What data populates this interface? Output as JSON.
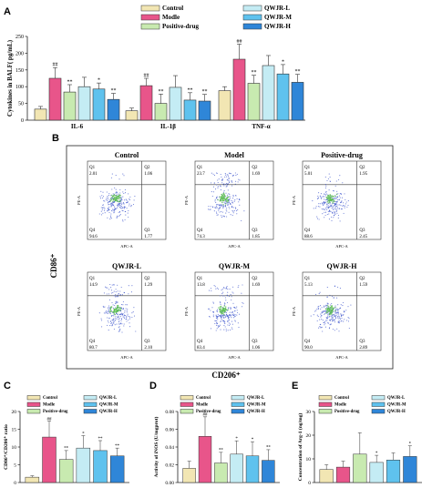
{
  "colors": {
    "Control": "#f2e6b3",
    "Modle": "#e8558a",
    "Positive-drug": "#c8eab0",
    "QWJR-L": "#c4ecf4",
    "QWJR-M": "#5fc2ee",
    "QWJR-H": "#2f86d8",
    "scatter": "#2f48c8",
    "scatter_dense": "#5fbf54"
  },
  "legend_labels": [
    "Control",
    "Modle",
    "Positive-drug",
    "QWJR-L",
    "QWJR-M",
    "QWJR-H"
  ],
  "panels": {
    "A": {
      "letter": "A"
    },
    "B": {
      "letter": "B",
      "ylabel": "CD86⁺",
      "xlabel": "CD206⁺"
    },
    "C": {
      "letter": "C"
    },
    "D": {
      "letter": "D"
    },
    "E": {
      "letter": "E"
    }
  },
  "chart_data": [
    {
      "id": "A",
      "type": "bar",
      "ylabel": "Cytokines in BALF( pg/mL)",
      "ylim": [
        0,
        250
      ],
      "yticks": [
        0,
        50,
        100,
        150,
        200,
        250
      ],
      "categories": [
        "IL-6",
        "IL-1β",
        "TNF-α"
      ],
      "legend": "top",
      "grid": false,
      "series": [
        {
          "name": "Control",
          "values": [
            33,
            28,
            88
          ],
          "errors": [
            8,
            8,
            12
          ],
          "annotations": [
            "",
            "",
            ""
          ]
        },
        {
          "name": "Modle",
          "values": [
            125,
            103,
            182
          ],
          "errors": [
            32,
            22,
            45
          ],
          "annotations": [
            "##",
            "##",
            "##"
          ]
        },
        {
          "name": "Positive-drug",
          "values": [
            84,
            50,
            110
          ],
          "errors": [
            22,
            28,
            24
          ],
          "annotations": [
            "**",
            "**",
            "**"
          ]
        },
        {
          "name": "QWJR-L",
          "values": [
            100,
            98,
            163
          ],
          "errors": [
            28,
            35,
            30
          ],
          "annotations": [
            "",
            "",
            ""
          ]
        },
        {
          "name": "QWJR-M",
          "values": [
            93,
            60,
            138
          ],
          "errors": [
            18,
            22,
            28
          ],
          "annotations": [
            "*",
            "**",
            "*"
          ]
        },
        {
          "name": "QWJR-H",
          "values": [
            62,
            57,
            113
          ],
          "errors": [
            18,
            20,
            24
          ],
          "annotations": [
            "**",
            "**",
            "**"
          ]
        }
      ]
    },
    {
      "id": "B",
      "type": "scatter",
      "xlabel": "CD206⁺",
      "ylabel": "CD86⁺",
      "axis_x_label": "APC-A",
      "axis_y_label": "PE-A",
      "plots": [
        {
          "title": "Control",
          "Q1": "2.01",
          "Q2": "1.06",
          "Q3": "1.77",
          "Q4": "94.6"
        },
        {
          "title": "Model",
          "Q1": "23.7",
          "Q2": "1.69",
          "Q3": "1.85",
          "Q4": "74.3"
        },
        {
          "title": "Positive-drug",
          "Q1": "5.01",
          "Q2": "1.95",
          "Q3": "2.45",
          "Q4": "88.6"
        },
        {
          "title": "QWJR-L",
          "Q1": "14.9",
          "Q2": "1.29",
          "Q3": "2.10",
          "Q4": "80.7"
        },
        {
          "title": "QWJR-M",
          "Q1": "13.8",
          "Q2": "1.69",
          "Q3": "1.06",
          "Q4": "83.4"
        },
        {
          "title": "QWJR-H",
          "Q1": "5.13",
          "Q2": "1.59",
          "Q3": "2.89",
          "Q4": "90.0"
        }
      ]
    },
    {
      "id": "C",
      "type": "bar",
      "ylabel": "CD86⁺/CD206⁺ ratio",
      "ylim": [
        0,
        20
      ],
      "yticks": [
        0,
        5,
        10,
        15,
        20
      ],
      "categories": [
        "Control",
        "Modle",
        "Positive-drug",
        "QWJR-L",
        "QWJR-M",
        "QWJR-H"
      ],
      "values": [
        1.5,
        12.8,
        6.5,
        9.7,
        9.0,
        7.5
      ],
      "errors": [
        0.4,
        4.5,
        2.5,
        3.5,
        2.8,
        2.2
      ],
      "annotations": [
        "",
        "##",
        "**",
        "*",
        "**",
        "**"
      ],
      "legend": "top"
    },
    {
      "id": "D",
      "type": "bar",
      "ylabel": "Activity of iNOS (U/mgprot)",
      "ylim": [
        0,
        0.08
      ],
      "yticks": [
        0,
        0.02,
        0.04,
        0.06,
        0.08
      ],
      "ytick_labels": [
        "0.00",
        "0.02",
        "0.04",
        "0.06",
        "0.08"
      ],
      "categories": [
        "Control",
        "Modle",
        "Positive-drug",
        "QWJR-L",
        "QWJR-M",
        "QWJR-H"
      ],
      "values": [
        0.016,
        0.052,
        0.022,
        0.032,
        0.03,
        0.025
      ],
      "errors": [
        0.008,
        0.022,
        0.012,
        0.015,
        0.016,
        0.012
      ],
      "annotations": [
        "",
        "##",
        "**",
        "*",
        "*",
        "**"
      ],
      "legend": "top"
    },
    {
      "id": "E",
      "type": "bar",
      "ylabel": "Concentration of Arg-1 (ng/mg)",
      "ylim": [
        0,
        30
      ],
      "yticks": [
        0,
        10,
        20,
        30
      ],
      "categories": [
        "Control",
        "Modle",
        "Positive-drug",
        "QWJR-L",
        "QWJR-M",
        "QWJR-H"
      ],
      "values": [
        5.5,
        6.5,
        12.0,
        8.5,
        9.5,
        11.0
      ],
      "errors": [
        2.0,
        2.5,
        9.0,
        3.0,
        3.0,
        4.5
      ],
      "annotations": [
        "",
        "",
        "",
        "*",
        "",
        "*"
      ],
      "legend": "top"
    }
  ]
}
